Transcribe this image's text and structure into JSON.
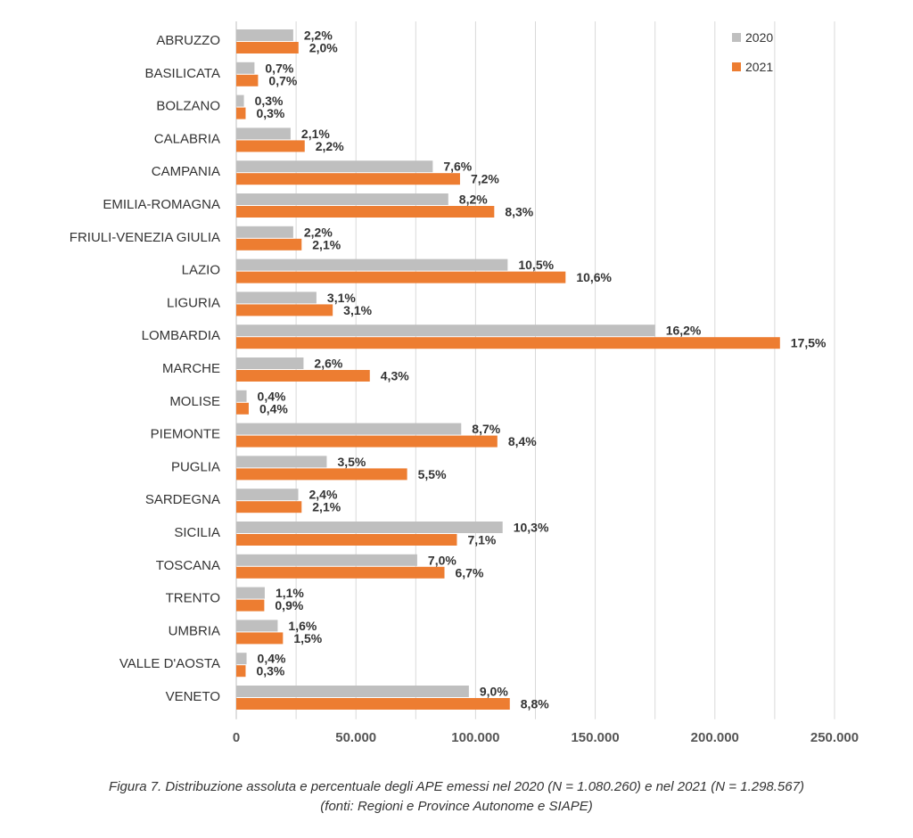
{
  "chart_data": {
    "type": "bar",
    "orientation": "horizontal",
    "categories": [
      "ABRUZZO",
      "BASILICATA",
      "BOLZANO",
      "CALABRIA",
      "CAMPANIA",
      "EMILIA-ROMAGNA",
      "FRIULI-VENEZIA GIULIA",
      "LAZIO",
      "LIGURIA",
      "LOMBARDIA",
      "MARCHE",
      "MOLISE",
      "PIEMONTE",
      "PUGLIA",
      "SARDEGNA",
      "SICILIA",
      "TOSCANA",
      "TRENTO",
      "UMBRIA",
      "VALLE D'AOSTA",
      "VENETO"
    ],
    "series": [
      {
        "name": "2020",
        "color": "#bfbfbf",
        "values": [
          23800,
          7600,
          3200,
          22700,
          82100,
          88600,
          23800,
          113400,
          33500,
          175000,
          28100,
          4300,
          94000,
          37800,
          25900,
          111300,
          75600,
          11900,
          17300,
          4300,
          97200
        ],
        "labels": [
          "2,2%",
          "0,7%",
          "0,3%",
          "2,1%",
          "7,6%",
          "8,2%",
          "2,2%",
          "10,5%",
          "3,1%",
          "16,2%",
          "2,6%",
          "0,4%",
          "8,7%",
          "3,5%",
          "2,4%",
          "10,3%",
          "7,0%",
          "1,1%",
          "1,6%",
          "0,4%",
          "9,0%"
        ]
      },
      {
        "name": "2021",
        "color": "#ed7d31",
        "values": [
          26000,
          9100,
          3900,
          28600,
          93500,
          107800,
          27300,
          137600,
          40300,
          227200,
          55800,
          5200,
          109100,
          71400,
          27300,
          92200,
          87000,
          11700,
          19500,
          3900,
          114300
        ],
        "labels": [
          "2,0%",
          "0,7%",
          "0,3%",
          "2,2%",
          "7,2%",
          "8,3%",
          "2,1%",
          "10,6%",
          "3,1%",
          "17,5%",
          "4,3%",
          "0,4%",
          "8,4%",
          "5,5%",
          "2,1%",
          "7,1%",
          "6,7%",
          "0,9%",
          "1,5%",
          "0,3%",
          "8,8%"
        ]
      }
    ],
    "xlim": [
      0,
      250000
    ],
    "xticks": [
      0,
      50000,
      100000,
      150000,
      200000,
      250000
    ],
    "xtick_labels": [
      "0",
      "50.000",
      "100.000",
      "150.000",
      "200.000",
      "250.000"
    ],
    "legend": [
      "2020",
      "2021"
    ],
    "legend_position": "top-right",
    "grid": true,
    "gridline_color": "#d9d9d9"
  },
  "caption": {
    "line1": "Figura 7. Distribuzione assoluta e percentuale degli APE emessi nel 2020 (N = 1.080.260) e nel 2021 (N = 1.298.567)",
    "line2": "(fonti: Regioni e Province Autonome e SIAPE)"
  }
}
